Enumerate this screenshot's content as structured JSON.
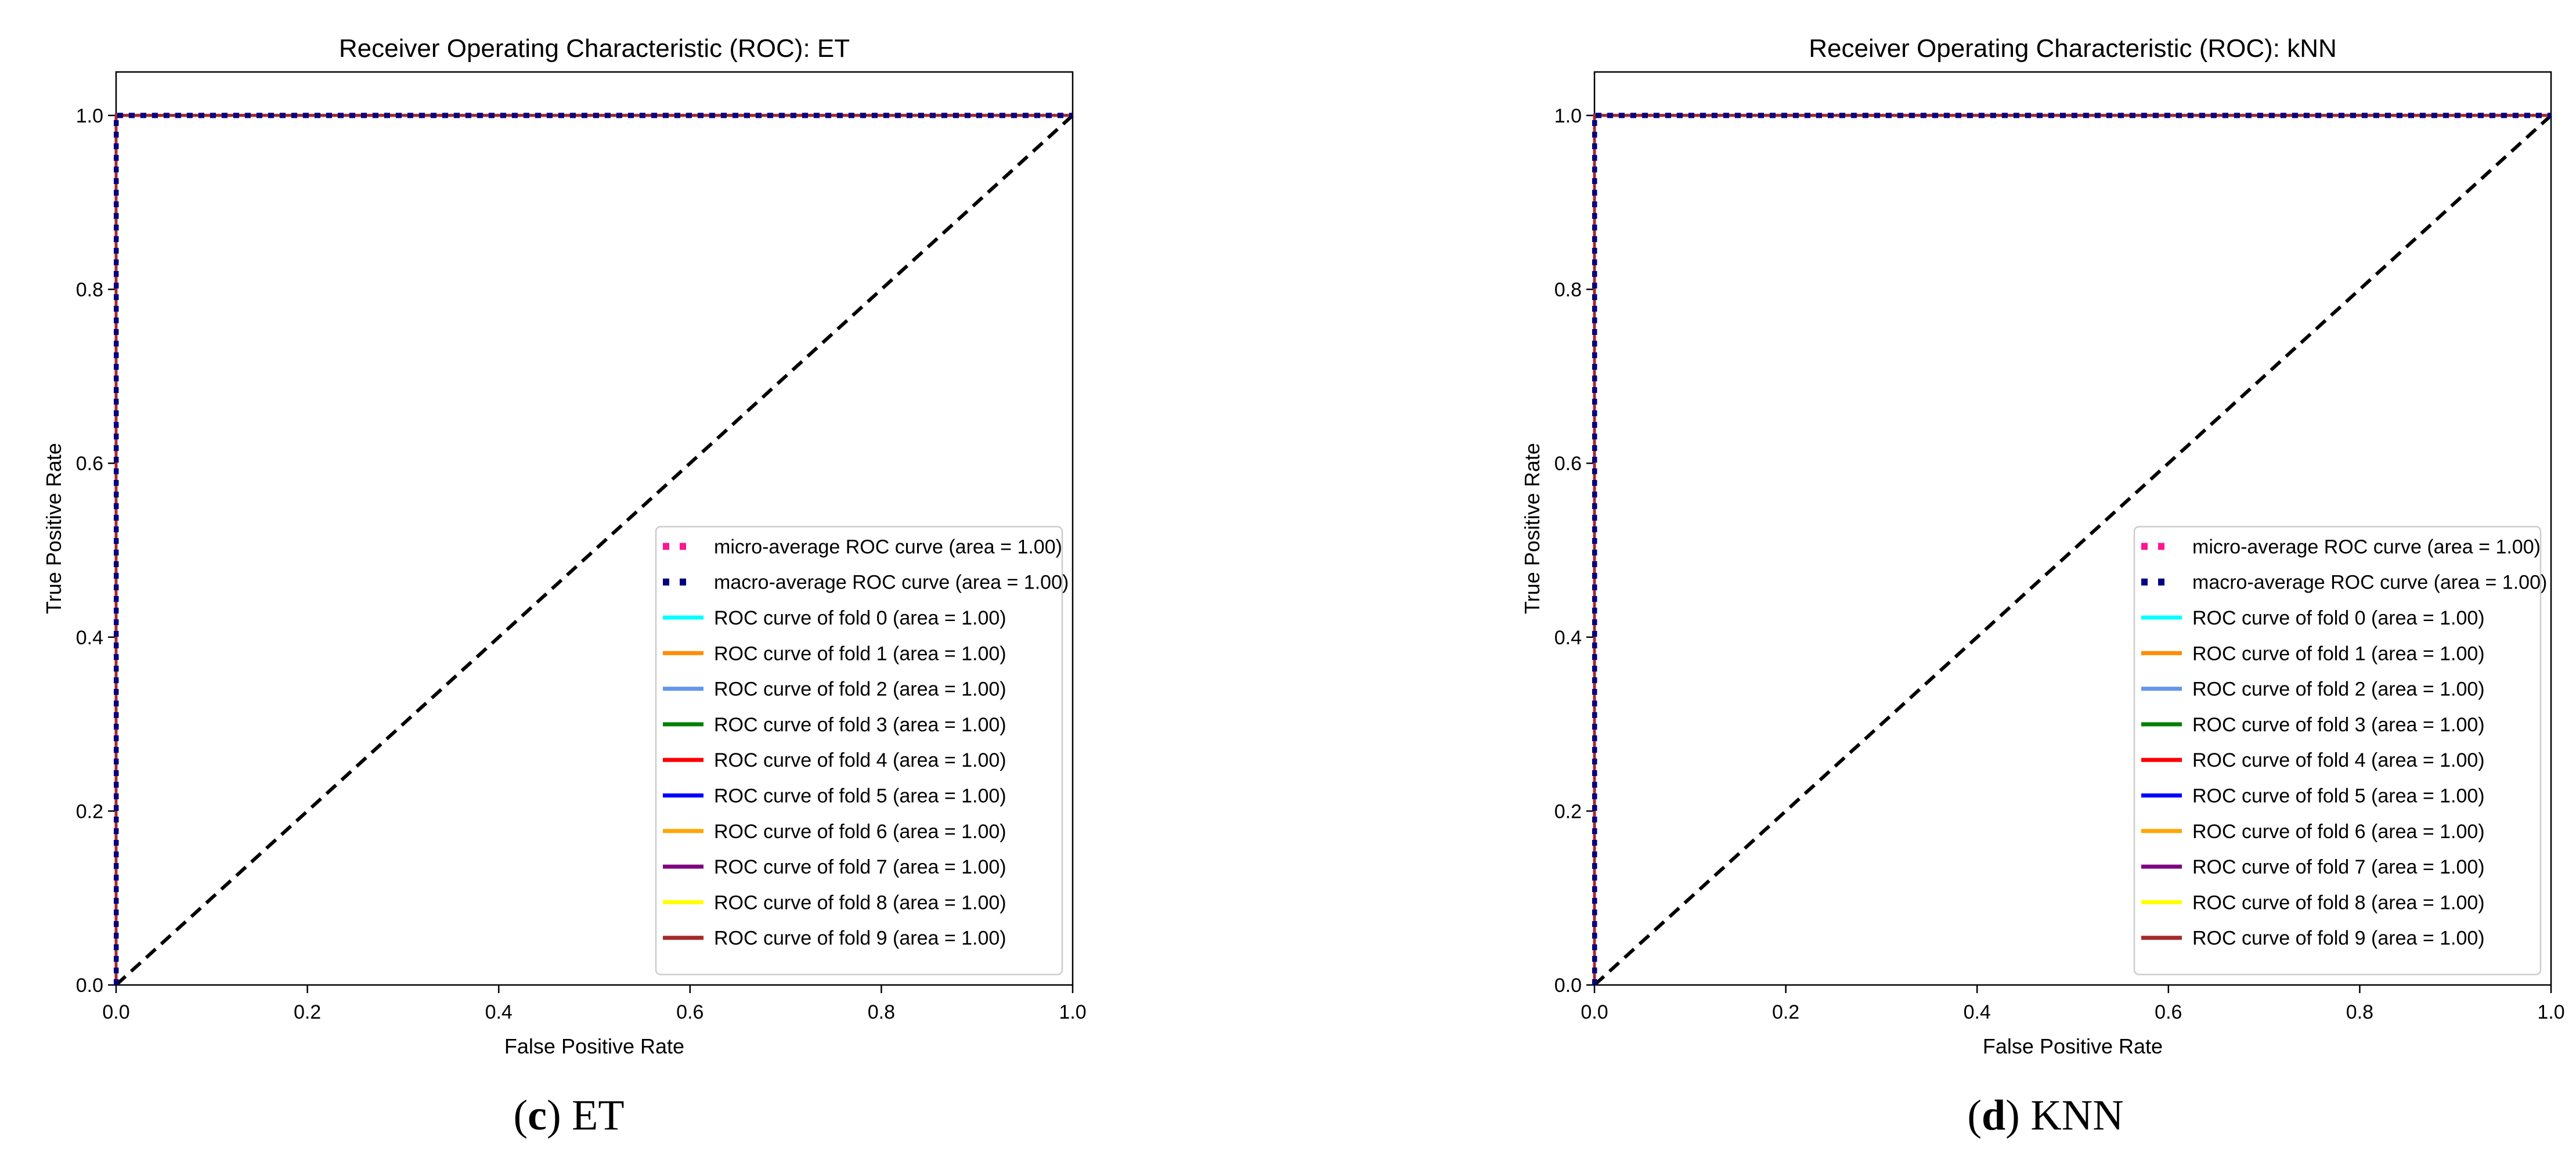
{
  "chart_data": [
    {
      "type": "line",
      "title": "Receiver Operating Characteristic (ROC): ET",
      "xlabel": "False Positive Rate",
      "ylabel": "True Positive Rate",
      "xlim": [
        0.0,
        1.0
      ],
      "ylim": [
        0.0,
        1.05
      ],
      "xticks": [
        "0.0",
        "0.2",
        "0.4",
        "0.6",
        "0.8",
        "1.0"
      ],
      "yticks": [
        "0.0",
        "0.2",
        "0.4",
        "0.6",
        "0.8",
        "1.0"
      ],
      "grid": false,
      "legend_position": "lower-right",
      "caption_letter": "c",
      "caption_text": " ET",
      "series": [
        {
          "name": "micro-average ROC curve (area = 1.00)",
          "color": "#ff1493",
          "style": "dotted",
          "x": [
            0,
            0,
            1
          ],
          "y": [
            0,
            1,
            1
          ]
        },
        {
          "name": "macro-average ROC curve (area = 1.00)",
          "color": "#000080",
          "style": "dotted",
          "x": [
            0,
            0,
            1
          ],
          "y": [
            0,
            1,
            1
          ]
        },
        {
          "name": "ROC curve of fold 0 (area = 1.00)",
          "color": "#00ffff",
          "style": "solid",
          "x": [
            0,
            0,
            1
          ],
          "y": [
            0,
            1,
            1
          ]
        },
        {
          "name": "ROC curve of fold 1 (area = 1.00)",
          "color": "#ff8c00",
          "style": "solid",
          "x": [
            0,
            0,
            1
          ],
          "y": [
            0,
            1,
            1
          ]
        },
        {
          "name": "ROC curve of fold 2 (area = 1.00)",
          "color": "#6495ed",
          "style": "solid",
          "x": [
            0,
            0,
            1
          ],
          "y": [
            0,
            1,
            1
          ]
        },
        {
          "name": "ROC curve of fold 3 (area = 1.00)",
          "color": "#008000",
          "style": "solid",
          "x": [
            0,
            0,
            1
          ],
          "y": [
            0,
            1,
            1
          ]
        },
        {
          "name": "ROC curve of fold 4 (area = 1.00)",
          "color": "#ff0000",
          "style": "solid",
          "x": [
            0,
            0,
            1
          ],
          "y": [
            0,
            1,
            1
          ]
        },
        {
          "name": "ROC curve of fold 5 (area = 1.00)",
          "color": "#0000ff",
          "style": "solid",
          "x": [
            0,
            0,
            1
          ],
          "y": [
            0,
            1,
            1
          ]
        },
        {
          "name": "ROC curve of fold 6 (area = 1.00)",
          "color": "#ffa500",
          "style": "solid",
          "x": [
            0,
            0,
            1
          ],
          "y": [
            0,
            1,
            1
          ]
        },
        {
          "name": "ROC curve of fold 7 (area = 1.00)",
          "color": "#800080",
          "style": "solid",
          "x": [
            0,
            0,
            1
          ],
          "y": [
            0,
            1,
            1
          ]
        },
        {
          "name": "ROC curve of fold 8 (area = 1.00)",
          "color": "#ffff00",
          "style": "solid",
          "x": [
            0,
            0,
            1
          ],
          "y": [
            0,
            1,
            1
          ]
        },
        {
          "name": "ROC curve of fold 9 (area = 1.00)",
          "color": "#a52a2a",
          "style": "solid",
          "x": [
            0,
            0,
            1
          ],
          "y": [
            0,
            1,
            1
          ]
        }
      ],
      "reference_line": {
        "x": [
          0,
          1
        ],
        "y": [
          0,
          1
        ],
        "color": "#000000",
        "style": "dashed"
      }
    },
    {
      "type": "line",
      "title": "Receiver Operating Characteristic (ROC): kNN",
      "xlabel": "False Positive Rate",
      "ylabel": "True Positive Rate",
      "xlim": [
        0.0,
        1.0
      ],
      "ylim": [
        0.0,
        1.05
      ],
      "xticks": [
        "0.0",
        "0.2",
        "0.4",
        "0.6",
        "0.8",
        "1.0"
      ],
      "yticks": [
        "0.0",
        "0.2",
        "0.4",
        "0.6",
        "0.8",
        "1.0"
      ],
      "grid": false,
      "legend_position": "lower-right",
      "caption_letter": "d",
      "caption_text": " KNN",
      "series": [
        {
          "name": "micro-average ROC curve (area = 1.00)",
          "color": "#ff1493",
          "style": "dotted",
          "x": [
            0,
            0,
            1
          ],
          "y": [
            0,
            1,
            1
          ]
        },
        {
          "name": "macro-average ROC curve (area = 1.00)",
          "color": "#000080",
          "style": "dotted",
          "x": [
            0,
            0,
            1
          ],
          "y": [
            0,
            1,
            1
          ]
        },
        {
          "name": "ROC curve of fold 0 (area = 1.00)",
          "color": "#00ffff",
          "style": "solid",
          "x": [
            0,
            0,
            1
          ],
          "y": [
            0,
            1,
            1
          ]
        },
        {
          "name": "ROC curve of fold 1 (area = 1.00)",
          "color": "#ff8c00",
          "style": "solid",
          "x": [
            0,
            0,
            1
          ],
          "y": [
            0,
            1,
            1
          ]
        },
        {
          "name": "ROC curve of fold 2 (area = 1.00)",
          "color": "#6495ed",
          "style": "solid",
          "x": [
            0,
            0,
            1
          ],
          "y": [
            0,
            1,
            1
          ]
        },
        {
          "name": "ROC curve of fold 3 (area = 1.00)",
          "color": "#008000",
          "style": "solid",
          "x": [
            0,
            0,
            1
          ],
          "y": [
            0,
            1,
            1
          ]
        },
        {
          "name": "ROC curve of fold 4 (area = 1.00)",
          "color": "#ff0000",
          "style": "solid",
          "x": [
            0,
            0,
            1
          ],
          "y": [
            0,
            1,
            1
          ]
        },
        {
          "name": "ROC curve of fold 5 (area = 1.00)",
          "color": "#0000ff",
          "style": "solid",
          "x": [
            0,
            0,
            1
          ],
          "y": [
            0,
            1,
            1
          ]
        },
        {
          "name": "ROC curve of fold 6 (area = 1.00)",
          "color": "#ffa500",
          "style": "solid",
          "x": [
            0,
            0,
            1
          ],
          "y": [
            0,
            1,
            1
          ]
        },
        {
          "name": "ROC curve of fold 7 (area = 1.00)",
          "color": "#800080",
          "style": "solid",
          "x": [
            0,
            0,
            1
          ],
          "y": [
            0,
            1,
            1
          ]
        },
        {
          "name": "ROC curve of fold 8 (area = 1.00)",
          "color": "#ffff00",
          "style": "solid",
          "x": [
            0,
            0,
            1
          ],
          "y": [
            0,
            1,
            1
          ]
        },
        {
          "name": "ROC curve of fold 9 (area = 1.00)",
          "color": "#a52a2a",
          "style": "solid",
          "x": [
            0,
            0,
            1
          ],
          "y": [
            0,
            1,
            1
          ]
        }
      ],
      "reference_line": {
        "x": [
          0,
          1
        ],
        "y": [
          0,
          1
        ],
        "color": "#000000",
        "style": "dashed"
      }
    }
  ]
}
